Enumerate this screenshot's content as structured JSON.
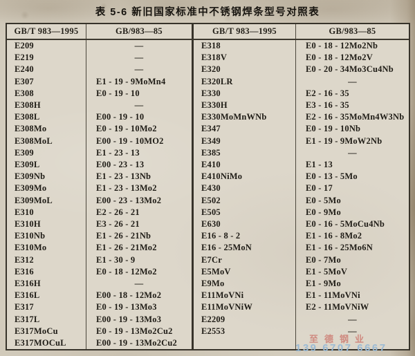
{
  "title": "表 5-6  新旧国家标准中不锈钢焊条型号对照表",
  "table": {
    "headers": [
      "GB/T 983—1995",
      "GB/983—85",
      "GB/T 983—1995",
      "GB/983—85"
    ],
    "missing_marker": "—",
    "left_rows": [
      [
        "E209",
        "—"
      ],
      [
        "E219",
        "—"
      ],
      [
        "E240",
        "—"
      ],
      [
        "E307",
        "E1 - 19 - 9MoMn4"
      ],
      [
        "E308",
        "E0 - 19 - 10"
      ],
      [
        "E308H",
        "—"
      ],
      [
        "E308L",
        "E00 - 19 - 10"
      ],
      [
        "E308Mo",
        "E0 - 19 - 10Mo2"
      ],
      [
        "E308MoL",
        "E00 - 19 - 10MO2"
      ],
      [
        "E309",
        "E1 - 23 - 13"
      ],
      [
        "E309L",
        "E00 - 23 - 13"
      ],
      [
        "E309Nb",
        "E1 - 23 - 13Nb"
      ],
      [
        "E309Mo",
        "E1 - 23 - 13Mo2"
      ],
      [
        "E309MoL",
        "E00 - 23 - 13Mo2"
      ],
      [
        "E310",
        "E2 - 26 - 21"
      ],
      [
        "E310H",
        "E3 - 26 - 21"
      ],
      [
        "E310Nb",
        "E1 - 26 - 21Nb"
      ],
      [
        "E310Mo",
        "E1 - 26 - 21Mo2"
      ],
      [
        "E312",
        "E1 - 30 - 9"
      ],
      [
        "E316",
        "E0 - 18 - 12Mo2"
      ],
      [
        "E316H",
        "—"
      ],
      [
        "E316L",
        "E00 - 18 - 12Mo2"
      ],
      [
        "E317",
        "E0 - 19 - 13Mo3"
      ],
      [
        "E317L",
        "E00 - 19 - 13Mo3"
      ],
      [
        "E317MoCu",
        "E0 - 19 - 13Mo2Cu2"
      ],
      [
        "E317MOCuL",
        "E00 - 19 - 13Mo2Cu2"
      ]
    ],
    "right_rows": [
      [
        "E318",
        "E0 - 18 - 12Mo2Nb"
      ],
      [
        "E318V",
        "E0 - 18 - 12Mo2V"
      ],
      [
        "E320",
        "E0 - 20 - 34Mo3Cu4Nb"
      ],
      [
        "E320LR",
        "—"
      ],
      [
        "E330",
        "E2 - 16 - 35"
      ],
      [
        "E330H",
        "E3 - 16 - 35"
      ],
      [
        "E330MoMnWNb",
        "E2 - 16 - 35MoMn4W3Nb"
      ],
      [
        "E347",
        "E0 - 19 - 10Nb"
      ],
      [
        "E349",
        "E1 - 19 - 9MoW2Nb"
      ],
      [
        "E385",
        "—"
      ],
      [
        "E410",
        "E1 - 13"
      ],
      [
        "E410NiMo",
        "E0 - 13 - 5Mo"
      ],
      [
        "E430",
        "E0 - 17"
      ],
      [
        "E502",
        "E0 - 5Mo"
      ],
      [
        "E505",
        "E0 - 9Mo"
      ],
      [
        "E630",
        "E0 - 16 - 5MoCu4Nb"
      ],
      [
        "E16 - 8 - 2",
        "E1 - 16 - 8Mo2"
      ],
      [
        "E16 - 25MoN",
        "E1 - 16 - 25Mo6N"
      ],
      [
        "E7Cr",
        "E0 - 7Mo"
      ],
      [
        "E5MoV",
        "E1 - 5MoV"
      ],
      [
        "E9Mo",
        "E1 - 9Mo"
      ],
      [
        "E11MoVNi",
        "E1 - 11MoVNi"
      ],
      [
        "E11MoVNiW",
        "E2 - 11MoVNiW"
      ],
      [
        "E2209",
        "—"
      ],
      [
        "E2553",
        "—"
      ]
    ]
  },
  "watermark": {
    "company": "至德钢业",
    "phone": "139 6707 6667",
    "company_color": "rgba(201,112,103,0.75)",
    "phone_color": "rgba(151,184,212,0.95)"
  },
  "colors": {
    "page_background": "#d3ccbd",
    "table_background": "#ddd7ca",
    "border": "#37332a",
    "text": "#1f1c16"
  }
}
